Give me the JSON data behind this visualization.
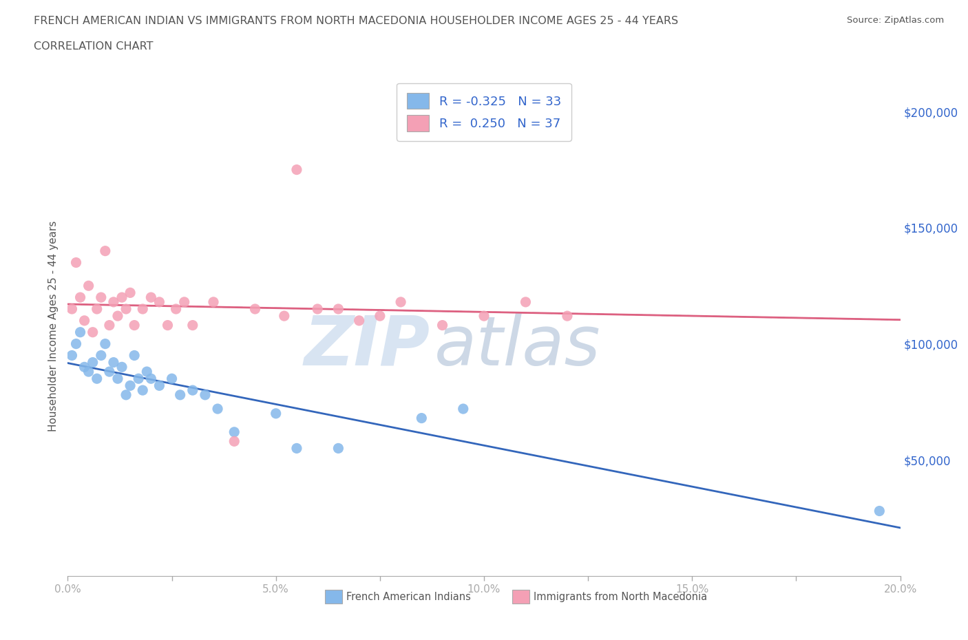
{
  "title_line1": "FRENCH AMERICAN INDIAN VS IMMIGRANTS FROM NORTH MACEDONIA HOUSEHOLDER INCOME AGES 25 - 44 YEARS",
  "title_line2": "CORRELATION CHART",
  "source_text": "Source: ZipAtlas.com",
  "ylabel": "Householder Income Ages 25 - 44 years",
  "xlim": [
    0.0,
    0.2
  ],
  "ylim": [
    0,
    215000
  ],
  "yticks": [
    0,
    50000,
    100000,
    150000,
    200000
  ],
  "ytick_labels": [
    "",
    "$50,000",
    "$100,000",
    "$150,000",
    "$200,000"
  ],
  "xticks": [
    0.0,
    0.025,
    0.05,
    0.075,
    0.1,
    0.125,
    0.15,
    0.175,
    0.2
  ],
  "xtick_labels": [
    "0.0%",
    "",
    "5.0%",
    "",
    "10.0%",
    "",
    "15.0%",
    "",
    "20.0%"
  ],
  "blue_color": "#85b8ea",
  "pink_color": "#f4a0b5",
  "blue_line_color": "#3366bb",
  "pink_line_color": "#dd6080",
  "dashed_line_color": "#ccbbcc",
  "legend_r_blue": "-0.325",
  "legend_n_blue": "33",
  "legend_r_pink": "0.250",
  "legend_n_pink": "37",
  "blue_scatter_x": [
    0.001,
    0.002,
    0.003,
    0.004,
    0.005,
    0.006,
    0.007,
    0.008,
    0.009,
    0.01,
    0.011,
    0.012,
    0.013,
    0.014,
    0.015,
    0.016,
    0.017,
    0.018,
    0.019,
    0.02,
    0.022,
    0.025,
    0.027,
    0.03,
    0.033,
    0.036,
    0.04,
    0.05,
    0.055,
    0.065,
    0.085,
    0.095,
    0.195
  ],
  "blue_scatter_y": [
    95000,
    100000,
    105000,
    90000,
    88000,
    92000,
    85000,
    95000,
    100000,
    88000,
    92000,
    85000,
    90000,
    78000,
    82000,
    95000,
    85000,
    80000,
    88000,
    85000,
    82000,
    85000,
    78000,
    80000,
    78000,
    72000,
    62000,
    70000,
    55000,
    55000,
    68000,
    72000,
    28000
  ],
  "pink_scatter_x": [
    0.001,
    0.002,
    0.003,
    0.004,
    0.005,
    0.006,
    0.007,
    0.008,
    0.009,
    0.01,
    0.011,
    0.012,
    0.013,
    0.014,
    0.015,
    0.016,
    0.018,
    0.02,
    0.022,
    0.024,
    0.026,
    0.028,
    0.03,
    0.035,
    0.04,
    0.045,
    0.052,
    0.06,
    0.07,
    0.08,
    0.09,
    0.1,
    0.11,
    0.12,
    0.065,
    0.075,
    0.055
  ],
  "pink_scatter_y": [
    115000,
    135000,
    120000,
    110000,
    125000,
    105000,
    115000,
    120000,
    140000,
    108000,
    118000,
    112000,
    120000,
    115000,
    122000,
    108000,
    115000,
    120000,
    118000,
    108000,
    115000,
    118000,
    108000,
    118000,
    58000,
    115000,
    112000,
    115000,
    110000,
    118000,
    108000,
    112000,
    118000,
    112000,
    115000,
    112000,
    175000
  ],
  "watermark_zip": "ZIP",
  "watermark_atlas": "atlas",
  "background_color": "#ffffff",
  "axis_color": "#aaaaaa",
  "title_color": "#555555",
  "tick_label_color_y": "#3366cc",
  "tick_label_color_x": "#555555",
  "legend_label_blue": "French American Indians",
  "legend_label_pink": "Immigrants from North Macedonia"
}
